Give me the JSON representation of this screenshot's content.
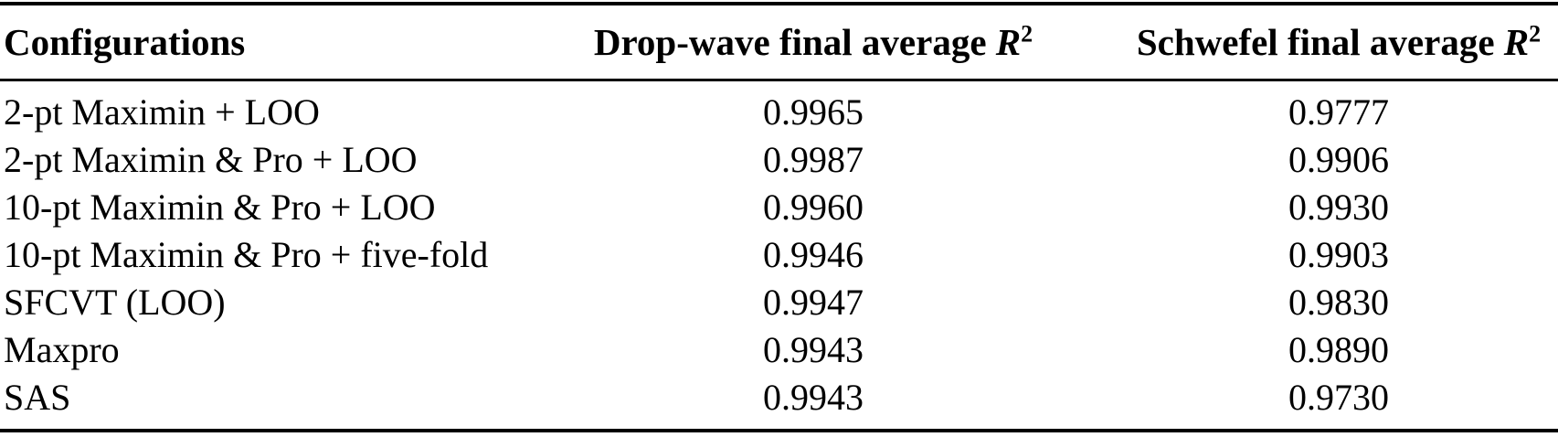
{
  "table": {
    "columns": {
      "config": "Configurations",
      "dropwave": {
        "prefix": "Drop-wave final average ",
        "symbol": "R",
        "sup": "2"
      },
      "schwefel": {
        "prefix": "Schwefel final average ",
        "symbol": "R",
        "sup": "2"
      }
    },
    "rows": [
      {
        "config": "2-pt Maximin + LOO",
        "dropwave": "0.9965",
        "schwefel": "0.9777"
      },
      {
        "config": "2-pt Maximin & Pro + LOO",
        "dropwave": "0.9987",
        "schwefel": "0.9906"
      },
      {
        "config": "10-pt Maximin & Pro + LOO",
        "dropwave": "0.9960",
        "schwefel": "0.9930"
      },
      {
        "config": "10-pt Maximin & Pro + five-fold",
        "dropwave": "0.9946",
        "schwefel": "0.9903"
      },
      {
        "config": "SFCVT (LOO)",
        "dropwave": "0.9947",
        "schwefel": "0.9830"
      },
      {
        "config": "Maxpro",
        "dropwave": "0.9943",
        "schwefel": "0.9890"
      },
      {
        "config": "SAS",
        "dropwave": "0.9943",
        "schwefel": "0.9730"
      }
    ]
  },
  "colors": {
    "text": "#000000",
    "background": "#ffffff",
    "rule": "#000000"
  }
}
